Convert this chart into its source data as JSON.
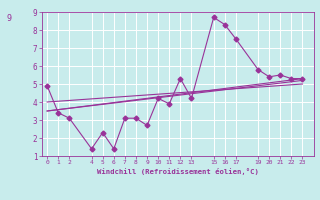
{
  "xlabel": "Windchill (Refroidissement éolien,°C)",
  "x_ticks": [
    0,
    1,
    2,
    4,
    5,
    6,
    7,
    8,
    9,
    10,
    11,
    12,
    13,
    15,
    16,
    17,
    19,
    20,
    21,
    22,
    23
  ],
  "line1_x": [
    0,
    1,
    2,
    4,
    5,
    6,
    7,
    8,
    9,
    10,
    11,
    12,
    13,
    15,
    16,
    17,
    19,
    20,
    21,
    22,
    23
  ],
  "line1_y": [
    4.9,
    3.4,
    3.1,
    1.4,
    2.3,
    1.4,
    3.1,
    3.1,
    2.7,
    4.2,
    3.9,
    5.3,
    4.2,
    8.7,
    8.3,
    7.5,
    5.8,
    5.4,
    5.5,
    5.3,
    5.3
  ],
  "line2_x": [
    0,
    23
  ],
  "line2_y": [
    3.5,
    5.3
  ],
  "line3_x": [
    0,
    23
  ],
  "line3_y": [
    3.5,
    5.2
  ],
  "line4_x": [
    0,
    23
  ],
  "line4_y": [
    4.0,
    5.0
  ],
  "ylim": [
    1,
    9
  ],
  "xlim": [
    -0.5,
    24
  ],
  "yticks": [
    1,
    2,
    3,
    4,
    5,
    6,
    7,
    8,
    9
  ],
  "bg_color": "#c8ecec",
  "line_color": "#993399",
  "grid_color": "#ffffff",
  "tick_label_color": "#993399",
  "label_color": "#993399",
  "marker": "D",
  "markersize": 2.5,
  "linewidth": 0.8
}
